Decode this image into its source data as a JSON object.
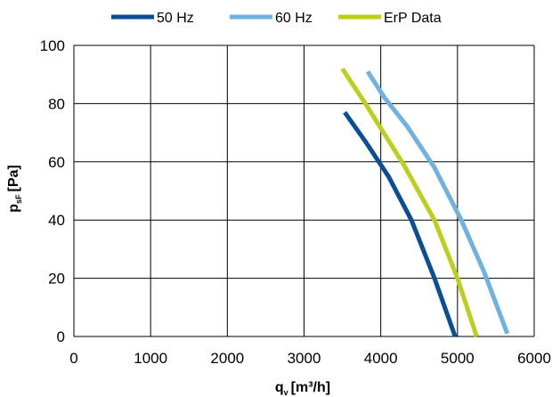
{
  "chart_data": {
    "type": "line",
    "xlabel_main": "q",
    "xlabel_sub": "v",
    "xlabel_unit": "[m³/h]",
    "ylabel_main": "p",
    "ylabel_sub": "sF",
    "ylabel_unit": "[Pa]",
    "xlim": [
      0,
      6000
    ],
    "ylim": [
      0,
      100
    ],
    "x_ticks": [
      "0",
      "1000",
      "2000",
      "3000",
      "4000",
      "5000",
      "6000"
    ],
    "y_ticks": [
      "0",
      "20",
      "40",
      "60",
      "80",
      "100"
    ],
    "grid": true,
    "legend_position": "top",
    "series": [
      {
        "name": "50 Hz",
        "color": "#0a4f93",
        "points": [
          [
            3530,
            77
          ],
          [
            3800,
            67
          ],
          [
            4100,
            55
          ],
          [
            4400,
            40
          ],
          [
            4700,
            20
          ],
          [
            4970,
            0
          ]
        ]
      },
      {
        "name": "60 Hz",
        "color": "#6fb1e0",
        "points": [
          [
            3830,
            91
          ],
          [
            4050,
            82
          ],
          [
            4350,
            72
          ],
          [
            4700,
            58
          ],
          [
            5050,
            40
          ],
          [
            5350,
            22
          ],
          [
            5650,
            1
          ]
        ]
      },
      {
        "name": "ErP Data",
        "color": "#bccf1c",
        "points": [
          [
            3500,
            92
          ],
          [
            3800,
            80
          ],
          [
            4300,
            59
          ],
          [
            4700,
            40
          ],
          [
            5000,
            20
          ],
          [
            5250,
            0
          ]
        ]
      }
    ]
  }
}
